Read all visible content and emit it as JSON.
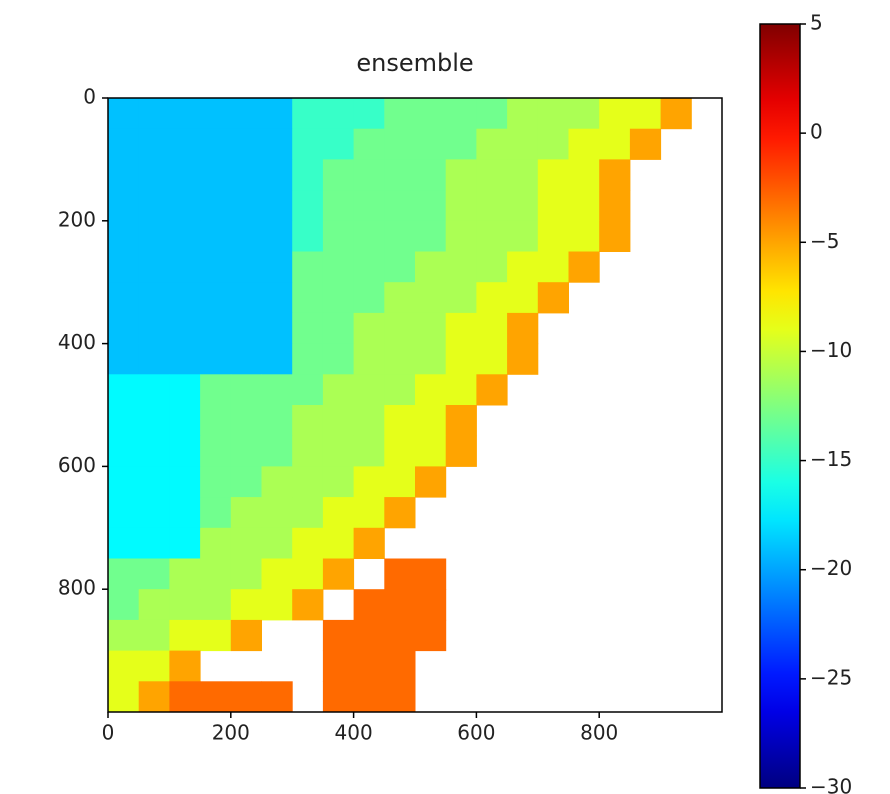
{
  "chart_data": {
    "type": "heatmap",
    "title": "ensemble",
    "cmap": "jet",
    "clim": [
      -30,
      5
    ],
    "xlim": [
      0,
      1000
    ],
    "ylim": [
      1000,
      0
    ],
    "xticks": [
      0,
      200,
      400,
      600,
      800
    ],
    "yticks": [
      0,
      200,
      400,
      600,
      800
    ],
    "colorbar_ticks": [
      5,
      0,
      {
        "value": -5,
        "label": "−5"
      },
      {
        "value": -10,
        "label": "−10"
      },
      {
        "value": -15,
        "label": "−15"
      },
      {
        "value": -20,
        "label": "−20"
      },
      {
        "value": -25,
        "label": "−25"
      },
      {
        "value": -30,
        "label": "−30"
      }
    ],
    "z": [
      [
        -19,
        -19,
        -19,
        -19,
        -19,
        -19,
        -15,
        -15,
        -15,
        -13,
        -13,
        -13,
        -13,
        -11,
        -11,
        -11,
        -9,
        -9,
        -5,
        null
      ],
      [
        -19,
        -19,
        -19,
        -19,
        -19,
        -19,
        -15,
        -15,
        -13,
        -13,
        -13,
        -13,
        -11,
        -11,
        -11,
        -9,
        -9,
        -5,
        null,
        null
      ],
      [
        -19,
        -19,
        -19,
        -19,
        -19,
        -19,
        -15,
        -13,
        -13,
        -13,
        -13,
        -11,
        -11,
        -11,
        -9,
        -9,
        -5,
        null,
        null,
        null
      ],
      [
        -19,
        -19,
        -19,
        -19,
        -19,
        -19,
        -15,
        -13,
        -13,
        -13,
        -13,
        -11,
        -11,
        -11,
        -9,
        -9,
        -5,
        null,
        null,
        null
      ],
      [
        -19,
        -19,
        -19,
        -19,
        -19,
        -19,
        -15,
        -13,
        -13,
        -13,
        -13,
        -11,
        -11,
        -11,
        -9,
        -9,
        -5,
        null,
        null,
        null
      ],
      [
        -19,
        -19,
        -19,
        -19,
        -19,
        -19,
        -13,
        -13,
        -13,
        -13,
        -11,
        -11,
        -11,
        -9,
        -9,
        -5,
        null,
        null,
        null,
        null
      ],
      [
        -19,
        -19,
        -19,
        -19,
        -19,
        -19,
        -13,
        -13,
        -13,
        -11,
        -11,
        -11,
        -9,
        -9,
        -5,
        null,
        null,
        null,
        null,
        null
      ],
      [
        -19,
        -19,
        -19,
        -19,
        -19,
        -19,
        -13,
        -13,
        -11,
        -11,
        -11,
        -9,
        -9,
        -5,
        null,
        null,
        null,
        null,
        null,
        null
      ],
      [
        -19,
        -19,
        -19,
        -19,
        -19,
        -19,
        -13,
        -13,
        -11,
        -11,
        -11,
        -9,
        -9,
        -5,
        null,
        null,
        null,
        null,
        null,
        null
      ],
      [
        -17,
        -17,
        -17,
        -13,
        -13,
        -13,
        -13,
        -11,
        -11,
        -11,
        -9,
        -9,
        -5,
        null,
        null,
        null,
        null,
        null,
        null,
        null
      ],
      [
        -17,
        -17,
        -17,
        -13,
        -13,
        -13,
        -11,
        -11,
        -11,
        -9,
        -9,
        -5,
        null,
        null,
        null,
        null,
        null,
        null,
        null,
        null
      ],
      [
        -17,
        -17,
        -17,
        -13,
        -13,
        -13,
        -11,
        -11,
        -11,
        -9,
        -9,
        -5,
        null,
        null,
        null,
        null,
        null,
        null,
        null,
        null
      ],
      [
        -17,
        -17,
        -17,
        -13,
        -13,
        -11,
        -11,
        -11,
        -9,
        -9,
        -5,
        null,
        null,
        null,
        null,
        null,
        null,
        null,
        null,
        null
      ],
      [
        -17,
        -17,
        -17,
        -13,
        -11,
        -11,
        -11,
        -9,
        -9,
        -5,
        null,
        null,
        null,
        null,
        null,
        null,
        null,
        null,
        null,
        null
      ],
      [
        -17,
        -17,
        -17,
        -11,
        -11,
        -11,
        -9,
        -9,
        -5,
        null,
        null,
        null,
        null,
        null,
        null,
        null,
        null,
        null,
        null,
        null
      ],
      [
        -13,
        -13,
        -11,
        -11,
        -11,
        -9,
        -9,
        -5,
        null,
        -3,
        -3,
        null,
        null,
        null,
        null,
        null,
        null,
        null,
        null,
        null
      ],
      [
        -13,
        -11,
        -11,
        -11,
        -9,
        -9,
        -5,
        null,
        -3,
        -3,
        -3,
        null,
        null,
        null,
        null,
        null,
        null,
        null,
        null,
        null
      ],
      [
        -11,
        -11,
        -9,
        -9,
        -5,
        null,
        null,
        -3,
        -3,
        -3,
        -3,
        null,
        null,
        null,
        null,
        null,
        null,
        null,
        null,
        null
      ],
      [
        -9,
        -9,
        -5,
        null,
        null,
        null,
        null,
        -3,
        -3,
        -3,
        null,
        null,
        null,
        null,
        null,
        null,
        null,
        null,
        null,
        null
      ],
      [
        -9,
        -5,
        -3,
        -3,
        -3,
        -3,
        null,
        -3,
        -3,
        -3,
        null,
        null,
        null,
        null,
        null,
        null,
        null,
        null,
        null,
        null
      ]
    ]
  }
}
